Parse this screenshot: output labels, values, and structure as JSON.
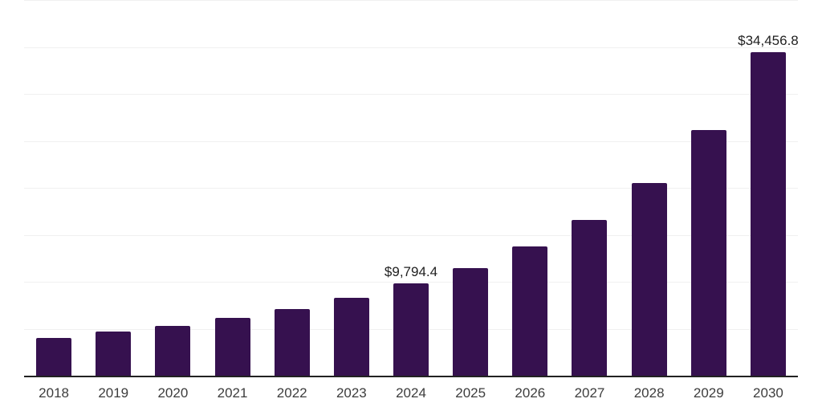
{
  "chart_data": {
    "type": "bar",
    "title": "",
    "xlabel": "",
    "ylabel": "",
    "categories": [
      "2018",
      "2019",
      "2020",
      "2021",
      "2022",
      "2023",
      "2024",
      "2025",
      "2026",
      "2027",
      "2028",
      "2029",
      "2030"
    ],
    "values": [
      4060,
      4720,
      5330,
      6180,
      7120,
      8320,
      9794.4,
      11470,
      13780,
      16590,
      20510,
      26140,
      34456.8
    ],
    "data_labels": [
      "",
      "",
      "",
      "",
      "",
      "",
      "$9,794.4",
      "",
      "",
      "",
      "",
      "",
      "$34,456.8"
    ],
    "ylim": [
      0,
      40000
    ],
    "gridline_interval": 5000,
    "grid": "horizontal",
    "legend_position": "none",
    "colors": {
      "bar": "#36114F",
      "gridline": "#f0f0f0",
      "axis_line": "#222222",
      "value_label_text": "#1f1f1f",
      "tick_label_text": "#3d3d3d",
      "background": "#ffffff"
    }
  }
}
